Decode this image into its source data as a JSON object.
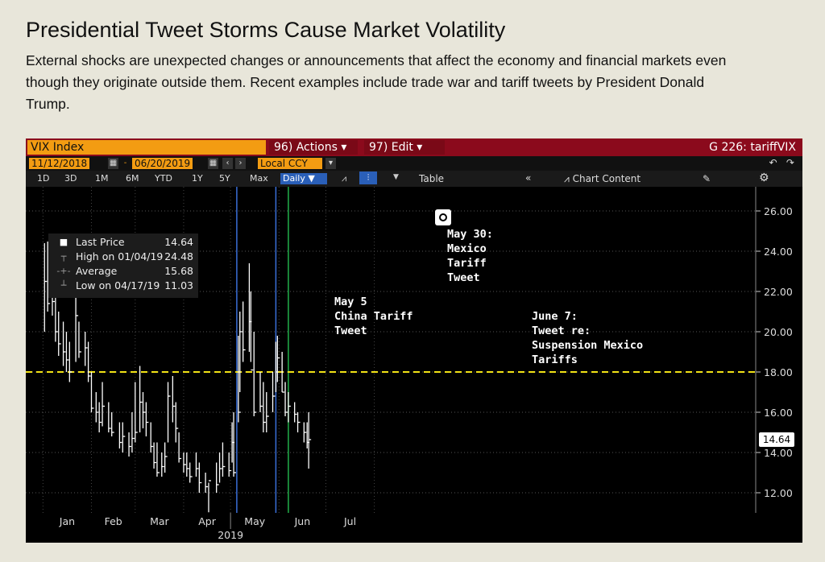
{
  "header": {
    "title": "Presidential Tweet Storms Cause Market Volatility",
    "subtitle": "External shocks are unexpected changes or announcements that affect the economy and financial markets even though they originate outside them. Recent examples include trade war and tariff tweets by President Donald Trump."
  },
  "terminal": {
    "ticker": "VIX Index",
    "actions_label": "96) Actions ▾",
    "edit_label": "97) Edit ▾",
    "graph_title": "G 226: tariffVIX",
    "start_date": "11/12/2018",
    "end_date": "06/20/2019",
    "currency": "Local CCY",
    "periods": [
      "1D",
      "3D",
      "1M",
      "6M",
      "YTD",
      "1Y",
      "5Y",
      "Max"
    ],
    "frequency": "Daily ▼",
    "table_label": "Table",
    "chart_content_label": "Chart Content"
  },
  "legend": {
    "last_label": "Last Price",
    "last_value": "14.64",
    "high_label": "High on 01/04/19",
    "high_value": "24.48",
    "avg_label": "Average",
    "avg_value": "15.68",
    "low_label": "Low on 04/17/19",
    "low_value": "11.03"
  },
  "annotations": {
    "china": "May 5\nChina Tariff\nTweet",
    "mexico": "May 30:\nMexico\nTariff\nTweet",
    "suspension": "June 7:\nTweet re:\nSuspension Mexico\nTariffs"
  },
  "last_price_box": "14.64",
  "colors": {
    "price": "#ffffff",
    "reference_line": "#f1e216",
    "may5_line": "#3a6fd8",
    "may30_line": "#3a6fd8",
    "june7_line": "#22b04a",
    "background": "#000000"
  },
  "chart_data": {
    "type": "ohlc",
    "title": "",
    "xlabel": "2019",
    "ylabel": "",
    "x_ticks": [
      "Jan",
      "Feb",
      "Mar",
      "Apr",
      "May",
      "Jun",
      "Jul"
    ],
    "y_ticks": [
      "12.00",
      "14.00",
      "16.00",
      "18.00",
      "20.00",
      "22.00",
      "24.00",
      "26.00"
    ],
    "ylim": [
      11,
      27
    ],
    "reference_lines": [
      {
        "orientation": "horizontal",
        "value": 18,
        "style": "dashed"
      }
    ],
    "event_lines": [
      {
        "date": "2019-05-05"
      },
      {
        "date": "2019-05-30"
      },
      {
        "date": "2019-06-07"
      }
    ],
    "last_value": 14.64,
    "series": [
      {
        "name": "VIX Index",
        "points": [
          {
            "date": "2019-01-02",
            "high": 24.4,
            "low": 20.0,
            "close": 22.5
          },
          {
            "date": "2019-01-04",
            "high": 24.48,
            "low": 21.0,
            "close": 21.4
          },
          {
            "date": "2019-01-07",
            "high": 22.5,
            "low": 20.8,
            "close": 21.5
          },
          {
            "date": "2019-01-09",
            "high": 22.0,
            "low": 19.5,
            "close": 20.0
          },
          {
            "date": "2019-01-11",
            "high": 21.0,
            "low": 18.8,
            "close": 19.4
          },
          {
            "date": "2019-01-14",
            "high": 20.5,
            "low": 18.3,
            "close": 19.0
          },
          {
            "date": "2019-01-16",
            "high": 20.0,
            "low": 18.0,
            "close": 18.6
          },
          {
            "date": "2019-01-18",
            "high": 19.5,
            "low": 17.5,
            "close": 18.0
          },
          {
            "date": "2019-01-22",
            "high": 22.3,
            "low": 18.5,
            "close": 20.8
          },
          {
            "date": "2019-01-24",
            "high": 20.5,
            "low": 18.7,
            "close": 19.0
          },
          {
            "date": "2019-01-28",
            "high": 20.0,
            "low": 18.3,
            "close": 19.2
          },
          {
            "date": "2019-01-30",
            "high": 19.5,
            "low": 17.5,
            "close": 17.8
          },
          {
            "date": "2019-02-01",
            "high": 18.0,
            "low": 16.0,
            "close": 16.2
          },
          {
            "date": "2019-02-04",
            "high": 17.0,
            "low": 15.5,
            "close": 16.0
          },
          {
            "date": "2019-02-06",
            "high": 16.5,
            "low": 15.0,
            "close": 15.5
          },
          {
            "date": "2019-02-08",
            "high": 17.5,
            "low": 15.3,
            "close": 16.3
          },
          {
            "date": "2019-02-12",
            "high": 16.5,
            "low": 15.0,
            "close": 15.2
          },
          {
            "date": "2019-02-14",
            "high": 16.0,
            "low": 14.8,
            "close": 15.0
          },
          {
            "date": "2019-02-19",
            "high": 15.5,
            "low": 14.2,
            "close": 14.5
          },
          {
            "date": "2019-02-21",
            "high": 15.5,
            "low": 14.0,
            "close": 14.8
          },
          {
            "date": "2019-02-25",
            "high": 15.0,
            "low": 13.8,
            "close": 14.3
          },
          {
            "date": "2019-02-27",
            "high": 16.0,
            "low": 14.0,
            "close": 14.7
          },
          {
            "date": "2019-03-01",
            "high": 17.5,
            "low": 14.5,
            "close": 15.0
          },
          {
            "date": "2019-03-04",
            "high": 18.3,
            "low": 15.0,
            "close": 16.5
          },
          {
            "date": "2019-03-06",
            "high": 17.0,
            "low": 15.2,
            "close": 16.0
          },
          {
            "date": "2019-03-08",
            "high": 16.5,
            "low": 14.8,
            "close": 15.5
          },
          {
            "date": "2019-03-11",
            "high": 15.5,
            "low": 14.0,
            "close": 14.3
          },
          {
            "date": "2019-03-13",
            "high": 14.5,
            "low": 13.2,
            "close": 13.5
          },
          {
            "date": "2019-03-15",
            "high": 14.5,
            "low": 12.8,
            "close": 13.0
          },
          {
            "date": "2019-03-18",
            "high": 14.0,
            "low": 12.8,
            "close": 13.3
          },
          {
            "date": "2019-03-20",
            "high": 14.5,
            "low": 13.0,
            "close": 13.8
          },
          {
            "date": "2019-03-22",
            "high": 17.5,
            "low": 14.5,
            "close": 16.8
          },
          {
            "date": "2019-03-25",
            "high": 17.8,
            "low": 15.5,
            "close": 16.3
          },
          {
            "date": "2019-03-27",
            "high": 16.5,
            "low": 14.5,
            "close": 15.2
          },
          {
            "date": "2019-03-29",
            "high": 15.0,
            "low": 13.5,
            "close": 13.7
          },
          {
            "date": "2019-04-01",
            "high": 14.0,
            "low": 13.0,
            "close": 13.4
          },
          {
            "date": "2019-04-03",
            "high": 14.0,
            "low": 12.8,
            "close": 13.2
          },
          {
            "date": "2019-04-05",
            "high": 13.5,
            "low": 12.5,
            "close": 12.8
          },
          {
            "date": "2019-04-09",
            "high": 14.0,
            "low": 12.8,
            "close": 13.2
          },
          {
            "date": "2019-04-11",
            "high": 13.5,
            "low": 12.0,
            "close": 12.5
          },
          {
            "date": "2019-04-15",
            "high": 13.0,
            "low": 12.0,
            "close": 12.3
          },
          {
            "date": "2019-04-17",
            "high": 12.5,
            "low": 11.03,
            "close": 12.6
          },
          {
            "date": "2019-04-22",
            "high": 13.5,
            "low": 12.0,
            "close": 12.4
          },
          {
            "date": "2019-04-24",
            "high": 14.0,
            "low": 12.5,
            "close": 13.2
          },
          {
            "date": "2019-04-26",
            "high": 14.5,
            "low": 12.8,
            "close": 13.3
          },
          {
            "date": "2019-04-30",
            "high": 14.0,
            "low": 12.8,
            "close": 13.1
          },
          {
            "date": "2019-05-02",
            "high": 15.5,
            "low": 13.5,
            "close": 14.5
          },
          {
            "date": "2019-05-03",
            "high": 16.0,
            "low": 12.8,
            "close": 13.0
          },
          {
            "date": "2019-05-06",
            "high": 19.8,
            "low": 15.5,
            "close": 16.0
          },
          {
            "date": "2019-05-07",
            "high": 21.0,
            "low": 17.0,
            "close": 20.0
          },
          {
            "date": "2019-05-09",
            "high": 21.5,
            "low": 18.5,
            "close": 19.1
          },
          {
            "date": "2019-05-13",
            "high": 23.4,
            "low": 19.0,
            "close": 20.5
          },
          {
            "date": "2019-05-14",
            "high": 22.0,
            "low": 18.5,
            "close": 18.1
          },
          {
            "date": "2019-05-16",
            "high": 20.0,
            "low": 15.8,
            "close": 16.0
          },
          {
            "date": "2019-05-20",
            "high": 18.0,
            "low": 16.0,
            "close": 16.3
          },
          {
            "date": "2019-05-22",
            "high": 17.5,
            "low": 15.0,
            "close": 15.5
          },
          {
            "date": "2019-05-24",
            "high": 17.0,
            "low": 15.0,
            "close": 15.8
          },
          {
            "date": "2019-05-28",
            "high": 18.0,
            "low": 16.0,
            "close": 16.8
          },
          {
            "date": "2019-05-30",
            "high": 19.5,
            "low": 17.0,
            "close": 18.0
          },
          {
            "date": "2019-05-31",
            "high": 19.8,
            "low": 17.5,
            "close": 18.7
          },
          {
            "date": "2019-06-03",
            "high": 19.0,
            "low": 17.0,
            "close": 17.0
          },
          {
            "date": "2019-06-05",
            "high": 17.5,
            "low": 15.8,
            "close": 16.0
          },
          {
            "date": "2019-06-07",
            "high": 17.0,
            "low": 15.5,
            "close": 16.3
          },
          {
            "date": "2019-06-11",
            "high": 16.5,
            "low": 15.5,
            "close": 15.9
          },
          {
            "date": "2019-06-13",
            "high": 16.0,
            "low": 15.0,
            "close": 15.5
          },
          {
            "date": "2019-06-17",
            "high": 15.5,
            "low": 14.5,
            "close": 15.0
          },
          {
            "date": "2019-06-19",
            "high": 15.5,
            "low": 14.2,
            "close": 14.5
          },
          {
            "date": "2019-06-20",
            "high": 16.0,
            "low": 13.2,
            "close": 14.64
          }
        ]
      }
    ]
  }
}
